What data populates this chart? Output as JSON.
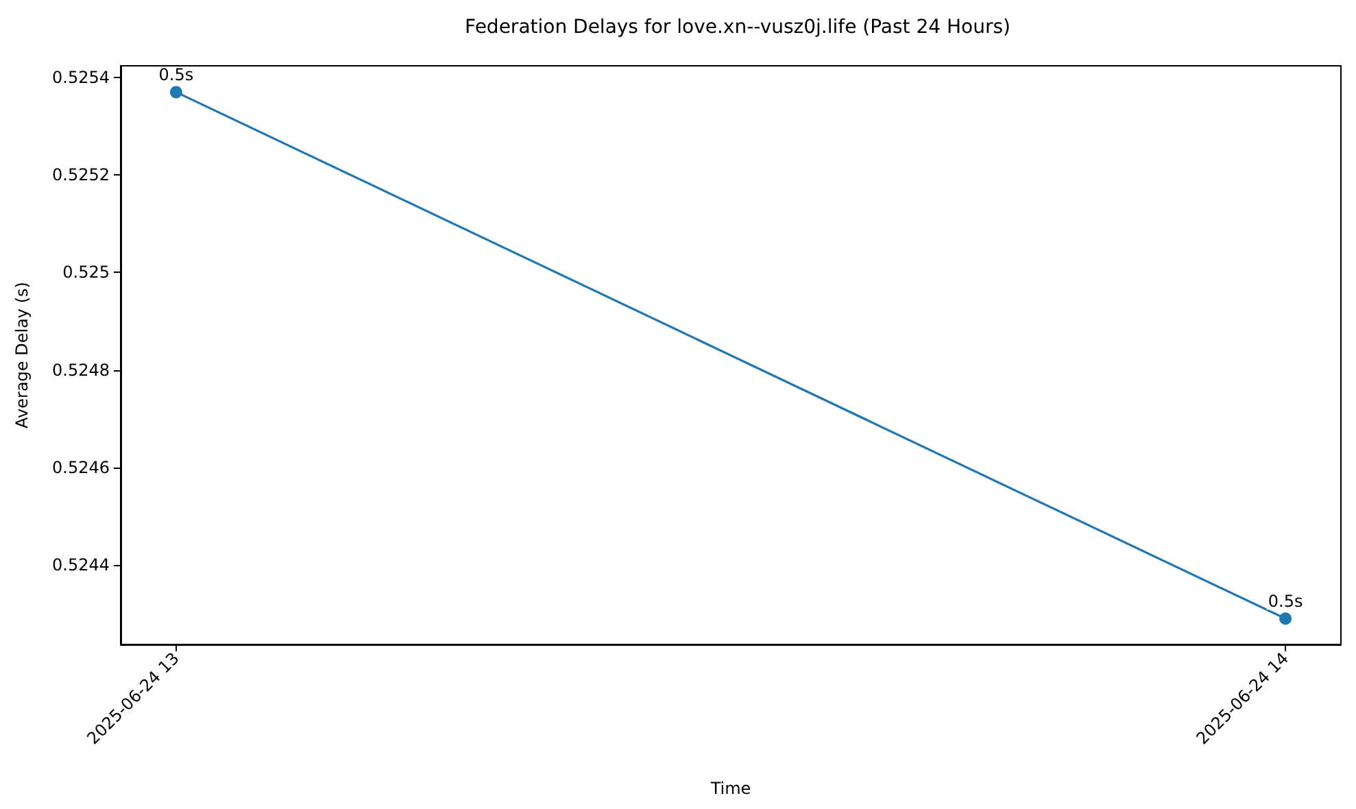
{
  "chart_data": {
    "type": "line",
    "title": "Federation Delays for love.xn--vusz0j.life (Past 24 Hours)",
    "xlabel": "Time",
    "ylabel": "Average Delay (s)",
    "x": [
      "2025-06-24T13:00",
      "2025-06-24T14:00"
    ],
    "series": [
      {
        "color": "#1f77b4",
        "values": [
          0.52537,
          0.52429
        ],
        "value_labels": [
          "0.5s",
          "0.5s"
        ]
      }
    ],
    "xlim": [
      "2025-06-24T12:57",
      "2025-06-24T14:03"
    ],
    "xticks": [
      {
        "value": "2025-06-24T13:00",
        "label": "2025-06-24 13"
      },
      {
        "value": "2025-06-24T14:00",
        "label": "2025-06-24 14"
      }
    ],
    "ylim": [
      0.524237,
      0.525424
    ],
    "yticks": [
      0.5244,
      0.5246,
      0.5248,
      0.525,
      0.5252,
      0.5254
    ],
    "grid": false,
    "marker": "circle",
    "line_style": "solid"
  }
}
